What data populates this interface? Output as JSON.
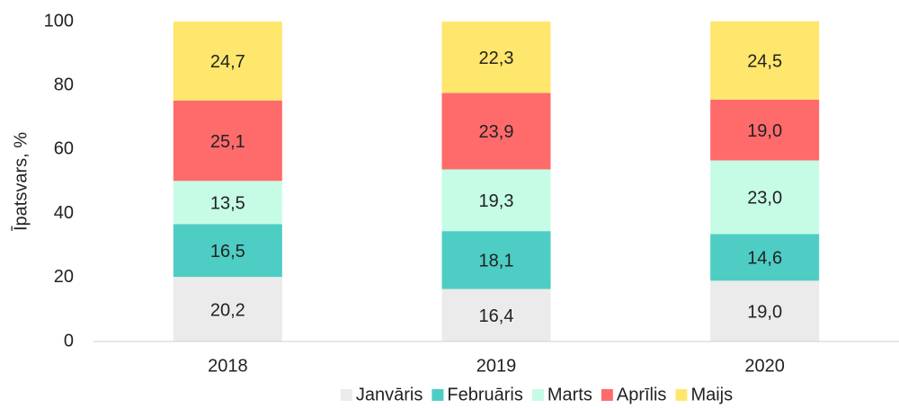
{
  "chart_data": {
    "type": "stacked-bar",
    "y_label": "Īpatsvars, %",
    "categories": [
      "2018",
      "2019",
      "2020"
    ],
    "series": [
      {
        "name": "Janvāris",
        "color": "#ebebeb",
        "values": [
          20.2,
          16.4,
          19.0
        ],
        "value_labels": [
          "20,2",
          "16,4",
          "19,0"
        ]
      },
      {
        "name": "Februāris",
        "color": "#4ecdc4",
        "values": [
          16.5,
          18.1,
          14.6
        ],
        "value_labels": [
          "16,5",
          "18,1",
          "14,6"
        ]
      },
      {
        "name": "Marts",
        "color": "#c6fce5",
        "values": [
          13.5,
          19.3,
          23.0
        ],
        "value_labels": [
          "13,5",
          "19,3",
          "23,0"
        ]
      },
      {
        "name": "Aprīlis",
        "color": "#ff6b6b",
        "values": [
          25.1,
          23.9,
          19.0
        ],
        "value_labels": [
          "25,1",
          "23,9",
          "19,0"
        ]
      },
      {
        "name": "Maijs",
        "color": "#ffe66d",
        "values": [
          24.7,
          22.3,
          24.5
        ],
        "value_labels": [
          "24,7",
          "22,3",
          "24,5"
        ]
      }
    ],
    "ylim": [
      0,
      100
    ],
    "yticks": [
      0,
      20,
      40,
      60,
      80,
      100
    ],
    "grid": false,
    "legend": "bottom"
  }
}
